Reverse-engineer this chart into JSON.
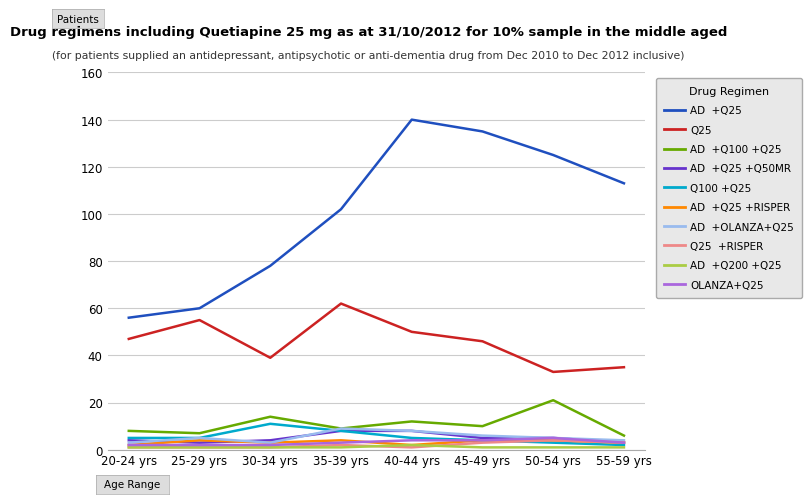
{
  "title": "Drug regimens including Quetiapine 25 mg as at 31/10/2012 for 10% sample in the middle aged",
  "subtitle": "(for patients supplied an antidepressant, antipsychotic or anti-dementia drug from Dec 2010 to Dec 2012 inclusive)",
  "xlabel": "Age Range",
  "ylabel": "Patients",
  "x_labels": [
    "20-24 yrs",
    "25-29 yrs",
    "30-34 yrs",
    "35-39 yrs",
    "40-44 yrs",
    "45-49 yrs",
    "50-54 yrs",
    "55-59 yrs"
  ],
  "ylim": [
    0,
    160
  ],
  "yticks": [
    0,
    20,
    40,
    60,
    80,
    100,
    120,
    140,
    160
  ],
  "legend_title": "Drug Regimen",
  "series": [
    {
      "label": "AD  +Q25",
      "color": "#1F4FBF",
      "values": [
        56,
        60,
        78,
        102,
        140,
        135,
        125,
        113
      ]
    },
    {
      "label": "Q25",
      "color": "#CC2222",
      "values": [
        47,
        55,
        39,
        62,
        50,
        46,
        33,
        35
      ]
    },
    {
      "label": "AD  +Q100 +Q25",
      "color": "#66AA00",
      "values": [
        8,
        7,
        14,
        9,
        12,
        10,
        21,
        6
      ]
    },
    {
      "label": "AD  +Q25 +Q50MR",
      "color": "#6633CC",
      "values": [
        4,
        3,
        4,
        8,
        8,
        5,
        5,
        3
      ]
    },
    {
      "label": "Q100 +Q25",
      "color": "#00AACC",
      "values": [
        5,
        5,
        11,
        8,
        5,
        4,
        3,
        2
      ]
    },
    {
      "label": "AD  +Q25 +RISPER",
      "color": "#FF8800",
      "values": [
        2,
        4,
        3,
        4,
        2,
        4,
        4,
        3
      ]
    },
    {
      "label": "AD  +OLANZA+Q25",
      "color": "#99BBEE",
      "values": [
        3,
        5,
        3,
        9,
        8,
        6,
        5,
        4
      ]
    },
    {
      "label": "Q25  +RISPER",
      "color": "#EE8888",
      "values": [
        1,
        1,
        1,
        2,
        1,
        3,
        4,
        3
      ]
    },
    {
      "label": "AD  +Q200 +Q25",
      "color": "#AACC44",
      "values": [
        1,
        1,
        1,
        1,
        2,
        1,
        1,
        1
      ]
    },
    {
      "label": "OLANZA+Q25",
      "color": "#AA66DD",
      "values": [
        2,
        2,
        2,
        3,
        4,
        4,
        5,
        3
      ]
    }
  ],
  "bg_color": "#FFFFFF",
  "plot_bg_color": "#FFFFFF",
  "grid_color": "#CCCCCC",
  "legend_bg_color": "#E8E8E8"
}
